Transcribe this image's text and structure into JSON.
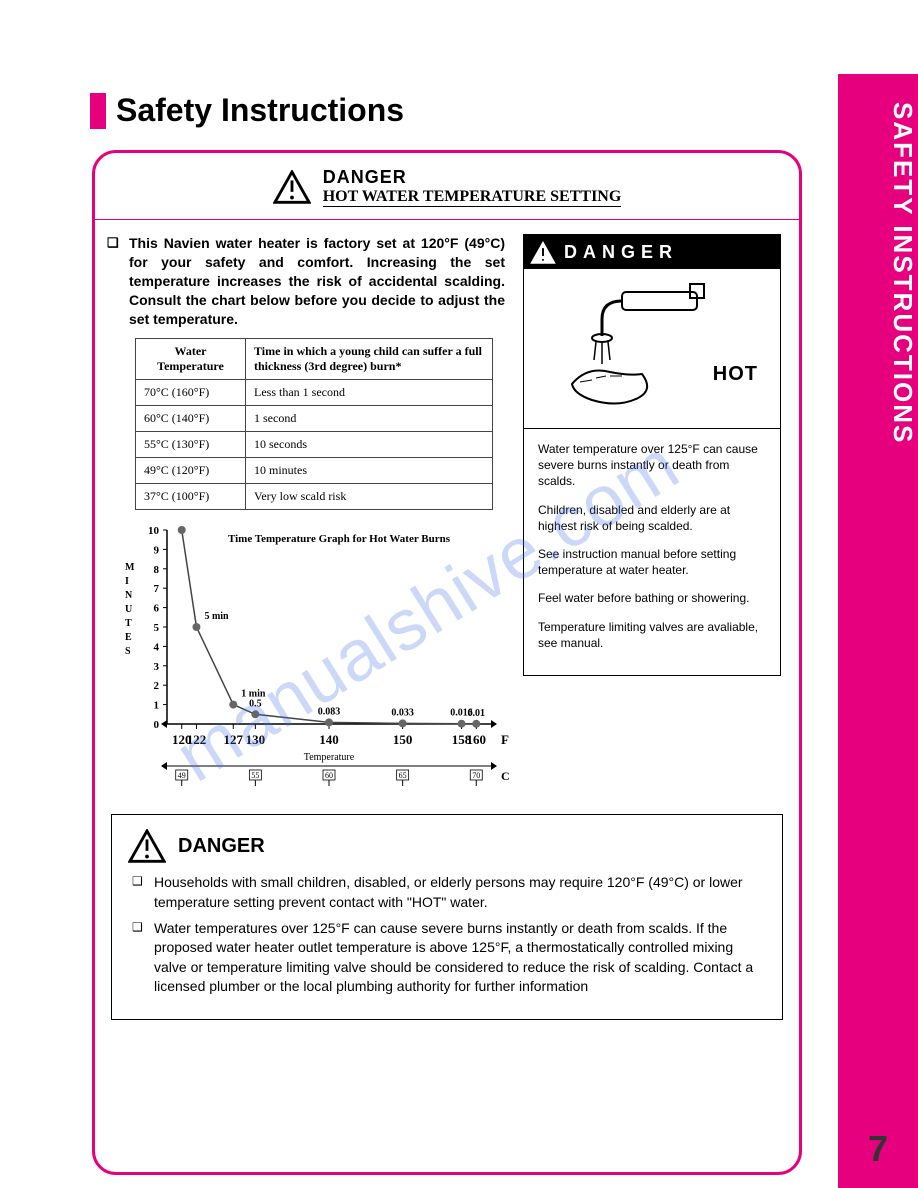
{
  "sidebar": {
    "label": "SAFETY INSTRUCTIONS"
  },
  "page_number": "7",
  "heading": "Safety Instructions",
  "top_danger": {
    "label": "DANGER",
    "subtitle": "HOT WATER TEMPERATURE SETTING"
  },
  "intro_text": "This Navien water heater is factory set at 120°F (49°C) for your safety and comfort. Increasing the set temperature increases the risk of accidental scalding. Consult the chart below before you decide to adjust the set temperature.",
  "scald_table": {
    "columns": [
      "Water Temperature",
      "Time in which a young child can suffer a full thickness (3rd degree) burn*"
    ],
    "rows": [
      [
        "70°C (160°F)",
        "Less than 1 second"
      ],
      [
        "60°C (140°F)",
        "1 second"
      ],
      [
        "55°C (130°F)",
        "10 seconds"
      ],
      [
        "49°C (120°F)",
        "10 minutes"
      ],
      [
        "37°C (100°F)",
        "Very low scald risk"
      ]
    ]
  },
  "chart": {
    "type": "line",
    "title": "Time Temperature Graph for Hot Water Burns",
    "y_axis_label": "MINUTES",
    "x_axis_label_f": "F",
    "x_axis_label_temp": "Temperature",
    "x_axis_label_cel": "Cel.",
    "x_values": [
      120,
      122,
      127,
      130,
      140,
      150,
      158,
      160
    ],
    "y_values": [
      10,
      5,
      1,
      0.5,
      0.083,
      0.033,
      0.016,
      0.01
    ],
    "point_labels": [
      "",
      "5 min",
      "1 min",
      "0.5",
      "0.083",
      "0.033",
      "0.016",
      "0.01"
    ],
    "x_ticks": [
      120,
      122,
      127,
      130,
      140,
      150,
      158,
      160
    ],
    "y_ticks": [
      0,
      1,
      2,
      3,
      4,
      5,
      6,
      7,
      8,
      9,
      10
    ],
    "cel_ticks": [
      "49",
      "",
      "",
      "55",
      "60",
      "65",
      "",
      "70"
    ],
    "xlim": [
      118,
      162
    ],
    "ylim": [
      0,
      10
    ],
    "line_color": "#444444",
    "marker_color": "#666666",
    "marker_size": 4,
    "grid_color": "#000000",
    "background": "#ffffff",
    "axis_fontsize": 11,
    "title_fontsize": 11
  },
  "warn_panel": {
    "header": "DANGER",
    "hot_label": "HOT",
    "paragraphs": [
      "Water temperature over 125°F can cause severe burns instantly or death from scalds.",
      "Children, disabled and elderly are at highest risk of being scalded.",
      "See instruction manual before setting temperature at water heater.",
      "Feel water before bathing or showering.",
      "Temperature limiting valves are avaliable, see manual."
    ]
  },
  "bottom_box": {
    "label": "DANGER",
    "items": [
      "Households with small children, disabled, or elderly persons may require 120°F (49°C) or lower temperature setting prevent contact with \"HOT\" water.",
      "Water temperatures over 125°F can cause severe burns instantly or death from scalds. If the proposed water heater outlet temperature is above 125°F, a thermostatically controlled mixing valve or temperature limiting valve should be considered to reduce the risk of scalding. Contact a licensed plumber or the local plumbing authority for further information"
    ]
  },
  "watermark": "manualshive.com",
  "colors": {
    "accent": "#e6007e",
    "text": "#000000"
  }
}
